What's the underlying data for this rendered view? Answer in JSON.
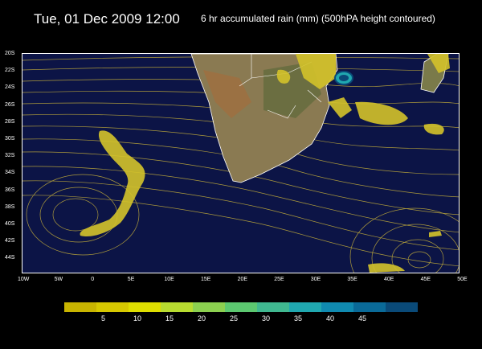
{
  "header": {
    "date_title": "Tue, 01 Dec 2009 12:00",
    "product_title": "6 hr accumulated rain (mm) (500hPA height contoured)"
  },
  "map": {
    "lat_labels": [
      "20S",
      "22S",
      "24S",
      "26S",
      "28S",
      "30S",
      "32S",
      "34S",
      "36S",
      "38S",
      "40S",
      "42S",
      "44S"
    ],
    "lon_labels": [
      "10W",
      "5W",
      "0",
      "5E",
      "10E",
      "15E",
      "20E",
      "25E",
      "30E",
      "35E",
      "40E",
      "45E",
      "50E"
    ],
    "lon_range": [
      -10,
      50
    ],
    "lat_range": [
      -20,
      -45
    ]
  },
  "colorbar": {
    "colors": [
      "#c8b400",
      "#d6c800",
      "#dede00",
      "#b8dc30",
      "#8cd050",
      "#5cc870",
      "#40b890",
      "#20a8b0",
      "#108ab0",
      "#0a6a98",
      "#0a4a78"
    ],
    "labels": [
      "5",
      "10",
      "15",
      "20",
      "25",
      "30",
      "35",
      "40",
      "45"
    ]
  }
}
